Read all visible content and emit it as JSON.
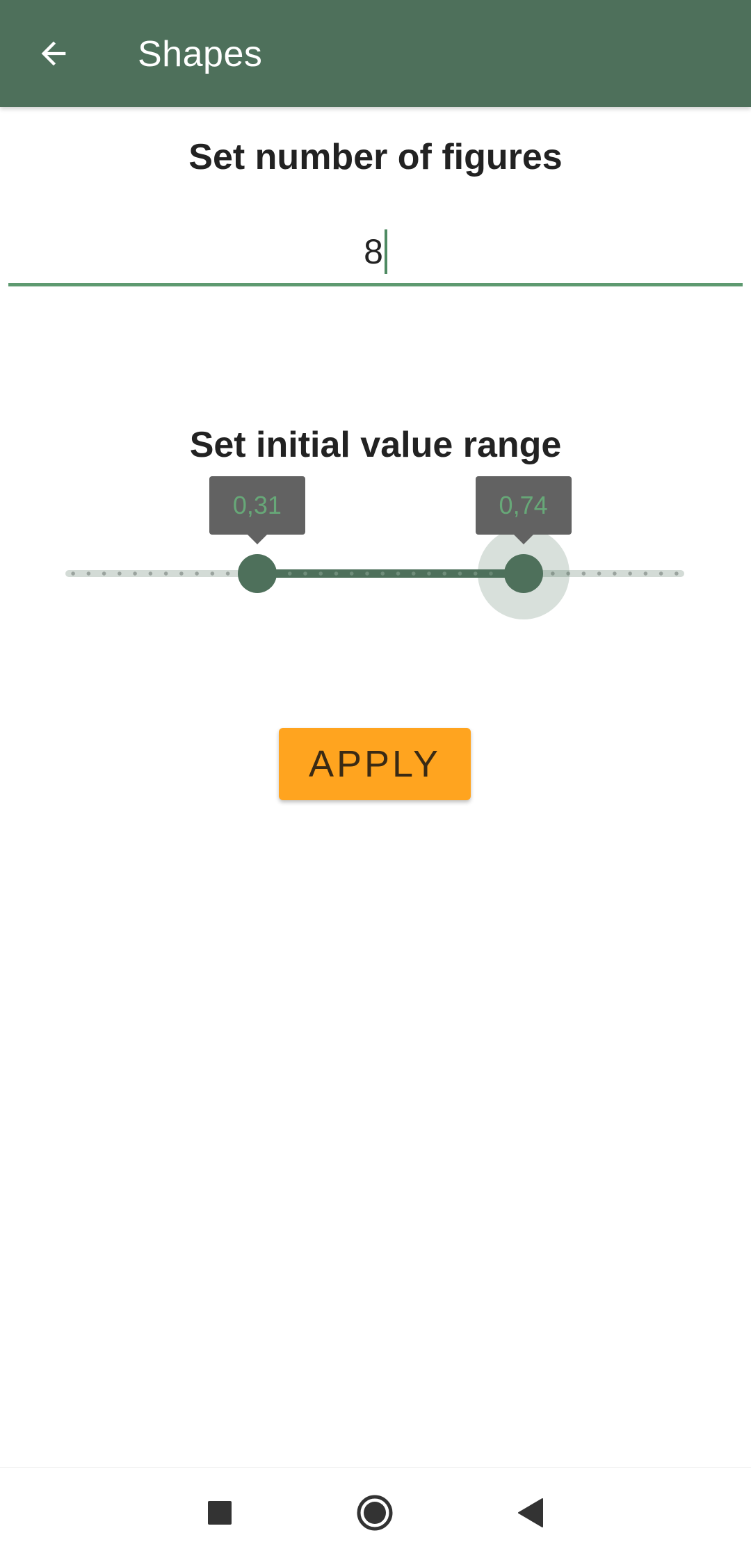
{
  "app_bar": {
    "title": "Shapes",
    "back_icon": "arrow-back-icon",
    "background": "#4e705b"
  },
  "figures": {
    "heading": "Set number of figures",
    "value": "8"
  },
  "range": {
    "heading": "Set initial value range",
    "min": 0,
    "max": 1,
    "low": 0.31,
    "high": 0.74,
    "low_label": "0,31",
    "high_label": "0,74",
    "active_color": "#4e705b"
  },
  "apply": {
    "label": "APPLY",
    "color": "#ffa41f"
  },
  "nav": {
    "recents_icon": "square-icon",
    "home_icon": "circle-home-icon",
    "back_icon": "triangle-back-icon"
  }
}
